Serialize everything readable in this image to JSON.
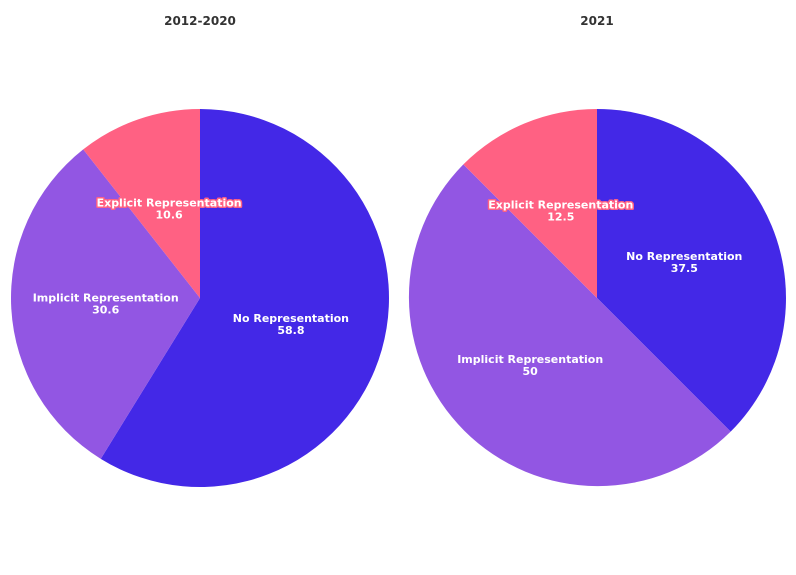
{
  "chart_data": [
    {
      "type": "pie",
      "title": "2012-2020",
      "slices": [
        {
          "label": "No Representation",
          "value": 58.8,
          "color": "#4328e7"
        },
        {
          "label": "Implicit Representation",
          "value": 30.6,
          "color": "#9256e3"
        },
        {
          "label": "Explicit Representation",
          "value": 10.6,
          "color": "#ff6183"
        }
      ]
    },
    {
      "type": "pie",
      "title": "2021",
      "slices": [
        {
          "label": "No Representation",
          "value": 37.5,
          "color": "#4328e7"
        },
        {
          "label": "Implicit Representation",
          "value": 50,
          "color": "#9256e3"
        },
        {
          "label": "Explicit Representation",
          "value": 12.5,
          "color": "#ff6183"
        }
      ]
    }
  ]
}
